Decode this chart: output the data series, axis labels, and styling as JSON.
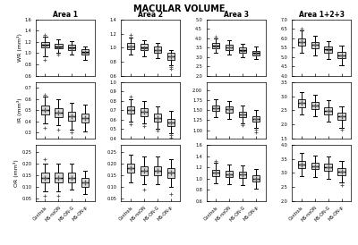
{
  "title": "MACULAR VOLUME",
  "col_labels": [
    "Area 1",
    "Area 2",
    "Area 3",
    "Area 1+2+3"
  ],
  "row_labels": [
    "WR (mm³)",
    "IR (mm³)",
    "OR (mm³)"
  ],
  "x_labels": [
    "Controls",
    "MS-noON",
    "MS-ON-G",
    "MS-ON-p"
  ],
  "background_color": "#ffffff",
  "boxes": {
    "WR": {
      "Area1": [
        {
          "med": 1.15,
          "mean": 1.14,
          "q1": 1.1,
          "q3": 1.2,
          "whislo": 0.95,
          "whishi": 1.3,
          "fliers": [
            0.88,
            1.32
          ]
        },
        {
          "med": 1.12,
          "mean": 1.11,
          "q1": 1.08,
          "q3": 1.17,
          "whislo": 1.0,
          "whishi": 1.25,
          "fliers": [
            0.98
          ]
        },
        {
          "med": 1.1,
          "mean": 1.09,
          "q1": 1.06,
          "q3": 1.15,
          "whislo": 0.98,
          "whishi": 1.22,
          "fliers": []
        },
        {
          "med": 1.02,
          "mean": 1.01,
          "q1": 0.97,
          "q3": 1.07,
          "whislo": 0.88,
          "whishi": 1.12,
          "fliers": []
        }
      ],
      "Area2": [
        {
          "med": 1.02,
          "mean": 1.01,
          "q1": 0.98,
          "q3": 1.07,
          "whislo": 0.9,
          "whishi": 1.14,
          "fliers": [
            1.18
          ]
        },
        {
          "med": 1.0,
          "mean": 0.99,
          "q1": 0.96,
          "q3": 1.05,
          "whislo": 0.88,
          "whishi": 1.1,
          "fliers": []
        },
        {
          "med": 0.97,
          "mean": 0.96,
          "q1": 0.93,
          "q3": 1.02,
          "whislo": 0.85,
          "whishi": 1.07,
          "fliers": []
        },
        {
          "med": 0.88,
          "mean": 0.87,
          "q1": 0.83,
          "q3": 0.93,
          "whislo": 0.75,
          "whishi": 0.97,
          "fliers": [
            0.72,
            0.7
          ]
        }
      ],
      "Area3": [
        {
          "med": 3.6,
          "mean": 3.58,
          "q1": 3.45,
          "q3": 3.75,
          "whislo": 3.2,
          "whishi": 4.0,
          "fliers": [
            4.1
          ]
        },
        {
          "med": 3.52,
          "mean": 3.5,
          "q1": 3.38,
          "q3": 3.65,
          "whislo": 3.15,
          "whishi": 3.88,
          "fliers": []
        },
        {
          "med": 3.35,
          "mean": 3.33,
          "q1": 3.22,
          "q3": 3.5,
          "whislo": 3.0,
          "whishi": 3.7,
          "fliers": []
        },
        {
          "med": 3.2,
          "mean": 3.18,
          "q1": 3.08,
          "q3": 3.32,
          "whislo": 2.9,
          "whishi": 3.55,
          "fliers": []
        }
      ],
      "Area123": [
        {
          "med": 5.8,
          "mean": 5.78,
          "q1": 5.6,
          "q3": 6.0,
          "whislo": 5.2,
          "whishi": 6.4,
          "fliers": [
            6.5
          ]
        },
        {
          "med": 5.65,
          "mean": 5.63,
          "q1": 5.48,
          "q3": 5.82,
          "whislo": 5.1,
          "whishi": 6.15,
          "fliers": []
        },
        {
          "med": 5.4,
          "mean": 5.38,
          "q1": 5.22,
          "q3": 5.58,
          "whislo": 4.9,
          "whishi": 5.85,
          "fliers": []
        },
        {
          "med": 5.1,
          "mean": 5.08,
          "q1": 4.92,
          "q3": 5.28,
          "whislo": 4.55,
          "whishi": 5.6,
          "fliers": []
        }
      ]
    },
    "IR": {
      "Area1": [
        {
          "med": 0.5,
          "mean": 0.5,
          "q1": 0.46,
          "q3": 0.54,
          "whislo": 0.38,
          "whishi": 0.62,
          "fliers": [
            0.34,
            0.64
          ]
        },
        {
          "med": 0.48,
          "mean": 0.48,
          "q1": 0.44,
          "q3": 0.52,
          "whislo": 0.37,
          "whishi": 0.6,
          "fliers": [
            0.33
          ]
        },
        {
          "med": 0.45,
          "mean": 0.45,
          "q1": 0.41,
          "q3": 0.49,
          "whislo": 0.33,
          "whishi": 0.57,
          "fliers": [
            0.3
          ]
        },
        {
          "med": 0.43,
          "mean": 0.43,
          "q1": 0.39,
          "q3": 0.47,
          "whislo": 0.31,
          "whishi": 0.55,
          "fliers": []
        }
      ],
      "Area2": [
        {
          "med": 0.7,
          "mean": 0.7,
          "q1": 0.66,
          "q3": 0.74,
          "whislo": 0.58,
          "whishi": 0.82,
          "fliers": [
            0.55,
            0.85
          ]
        },
        {
          "med": 0.68,
          "mean": 0.68,
          "q1": 0.64,
          "q3": 0.72,
          "whislo": 0.56,
          "whishi": 0.8,
          "fliers": [
            0.53
          ]
        },
        {
          "med": 0.62,
          "mean": 0.62,
          "q1": 0.58,
          "q3": 0.66,
          "whislo": 0.5,
          "whishi": 0.74,
          "fliers": [
            0.48
          ]
        },
        {
          "med": 0.57,
          "mean": 0.57,
          "q1": 0.53,
          "q3": 0.61,
          "whislo": 0.45,
          "whishi": 0.69,
          "fliers": [
            0.43,
            0.41
          ]
        }
      ],
      "Area3": [
        {
          "med": 1.55,
          "mean": 1.55,
          "q1": 1.48,
          "q3": 1.62,
          "whislo": 1.32,
          "whishi": 1.78,
          "fliers": []
        },
        {
          "med": 1.52,
          "mean": 1.52,
          "q1": 1.45,
          "q3": 1.59,
          "whislo": 1.28,
          "whishi": 1.74,
          "fliers": []
        },
        {
          "med": 1.4,
          "mean": 1.4,
          "q1": 1.33,
          "q3": 1.47,
          "whislo": 1.18,
          "whishi": 1.62,
          "fliers": [
            1.12
          ]
        },
        {
          "med": 1.28,
          "mean": 1.28,
          "q1": 1.21,
          "q3": 1.35,
          "whislo": 1.05,
          "whishi": 1.5,
          "fliers": [
            1.02,
            0.95
          ]
        }
      ],
      "Area123": [
        {
          "med": 2.75,
          "mean": 2.75,
          "q1": 2.62,
          "q3": 2.88,
          "whislo": 2.35,
          "whishi": 3.15,
          "fliers": []
        },
        {
          "med": 2.68,
          "mean": 2.68,
          "q1": 2.55,
          "q3": 2.81,
          "whislo": 2.28,
          "whishi": 3.05,
          "fliers": []
        },
        {
          "med": 2.48,
          "mean": 2.48,
          "q1": 2.35,
          "q3": 2.61,
          "whislo": 2.1,
          "whishi": 2.85,
          "fliers": []
        },
        {
          "med": 2.28,
          "mean": 2.28,
          "q1": 2.15,
          "q3": 2.41,
          "whislo": 1.88,
          "whishi": 2.65,
          "fliers": [
            1.82
          ]
        }
      ]
    },
    "OR": {
      "Area1": [
        {
          "med": 0.14,
          "mean": 0.14,
          "q1": 0.12,
          "q3": 0.16,
          "whislo": 0.08,
          "whishi": 0.2,
          "fliers": [
            0.22,
            0.06
          ]
        },
        {
          "med": 0.14,
          "mean": 0.14,
          "q1": 0.12,
          "q3": 0.16,
          "whislo": 0.08,
          "whishi": 0.2,
          "fliers": [
            0.06
          ]
        },
        {
          "med": 0.14,
          "mean": 0.14,
          "q1": 0.12,
          "q3": 0.16,
          "whislo": 0.09,
          "whishi": 0.2,
          "fliers": []
        },
        {
          "med": 0.12,
          "mean": 0.12,
          "q1": 0.1,
          "q3": 0.14,
          "whislo": 0.07,
          "whishi": 0.17,
          "fliers": []
        }
      ],
      "Area2": [
        {
          "med": 0.18,
          "mean": 0.18,
          "q1": 0.16,
          "q3": 0.2,
          "whislo": 0.12,
          "whishi": 0.24,
          "fliers": []
        },
        {
          "med": 0.17,
          "mean": 0.17,
          "q1": 0.15,
          "q3": 0.19,
          "whislo": 0.11,
          "whishi": 0.23,
          "fliers": [
            0.09
          ]
        },
        {
          "med": 0.17,
          "mean": 0.17,
          "q1": 0.15,
          "q3": 0.19,
          "whislo": 0.11,
          "whishi": 0.23,
          "fliers": []
        },
        {
          "med": 0.16,
          "mean": 0.16,
          "q1": 0.14,
          "q3": 0.18,
          "whislo": 0.1,
          "whishi": 0.22,
          "fliers": [
            0.07
          ]
        }
      ],
      "Area3": [
        {
          "med": 1.1,
          "mean": 1.1,
          "q1": 1.04,
          "q3": 1.16,
          "whislo": 0.92,
          "whishi": 1.28,
          "fliers": [
            1.32
          ]
        },
        {
          "med": 1.08,
          "mean": 1.08,
          "q1": 1.02,
          "q3": 1.14,
          "whislo": 0.9,
          "whishi": 1.25,
          "fliers": []
        },
        {
          "med": 1.07,
          "mean": 1.07,
          "q1": 1.01,
          "q3": 1.13,
          "whislo": 0.89,
          "whishi": 1.24,
          "fliers": []
        },
        {
          "med": 1.0,
          "mean": 1.0,
          "q1": 0.94,
          "q3": 1.06,
          "whislo": 0.82,
          "whishi": 1.17,
          "fliers": []
        }
      ],
      "Area123": [
        {
          "med": 3.3,
          "mean": 3.3,
          "q1": 3.18,
          "q3": 3.42,
          "whislo": 2.9,
          "whishi": 3.7,
          "fliers": []
        },
        {
          "med": 3.25,
          "mean": 3.25,
          "q1": 3.13,
          "q3": 3.37,
          "whislo": 2.85,
          "whishi": 3.62,
          "fliers": []
        },
        {
          "med": 3.2,
          "mean": 3.2,
          "q1": 3.08,
          "q3": 3.32,
          "whislo": 2.8,
          "whishi": 3.58,
          "fliers": []
        },
        {
          "med": 3.05,
          "mean": 3.05,
          "q1": 2.93,
          "q3": 3.17,
          "whislo": 2.65,
          "whishi": 3.42,
          "fliers": [
            2.55
          ]
        }
      ]
    }
  },
  "ylims": {
    "WR_Area1": [
      0.6,
      1.6
    ],
    "WR_Area2": [
      0.6,
      1.4
    ],
    "WR_Area3": [
      2.0,
      5.0
    ],
    "WR_Area123": [
      4.0,
      7.0
    ],
    "IR_Area1": [
      0.25,
      0.75
    ],
    "IR_Area2": [
      0.4,
      1.0
    ],
    "IR_Area3": [
      0.8,
      2.2
    ],
    "IR_Area123": [
      1.5,
      3.5
    ],
    "OR_Area1": [
      0.04,
      0.28
    ],
    "OR_Area2": [
      0.04,
      0.28
    ],
    "OR_Area3": [
      0.6,
      1.6
    ],
    "OR_Area123": [
      2.0,
      4.0
    ]
  },
  "box_color": "#d3d3d3",
  "median_color": "#000000",
  "whisker_color": "#000000",
  "flier_color": "#555555",
  "mean_color": "#555555"
}
